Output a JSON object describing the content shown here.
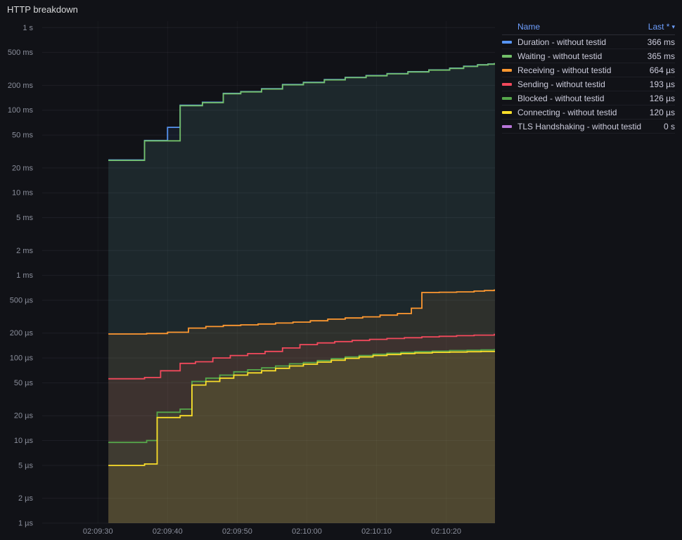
{
  "title": "HTTP breakdown",
  "theme": {
    "background": "#111217",
    "text": "#CCCCDC",
    "axis_text": "#8B8F9C",
    "grid": "rgba(204,204,220,0.07)",
    "grid_vertical": "rgba(204,204,220,0.045)",
    "link": "#6E9FFF"
  },
  "legend": {
    "header": {
      "name": "Name",
      "last": "Last *",
      "sort_icon": "▾"
    },
    "position": "right-top"
  },
  "chart_data": {
    "type": "line",
    "interpolation": "step-after",
    "title": "HTTP breakdown",
    "grid": true,
    "fill_opacity": 0.08,
    "line_width": 1.8,
    "y_axis": {
      "scale": "log10",
      "unit": "µs",
      "min": 1,
      "max": 1200000,
      "ticks": [
        {
          "v": 1000000,
          "label": "1 s"
        },
        {
          "v": 500000,
          "label": "500 ms"
        },
        {
          "v": 200000,
          "label": "200 ms"
        },
        {
          "v": 100000,
          "label": "100 ms"
        },
        {
          "v": 50000,
          "label": "50 ms"
        },
        {
          "v": 20000,
          "label": "20 ms"
        },
        {
          "v": 10000,
          "label": "10 ms"
        },
        {
          "v": 5000,
          "label": "5 ms"
        },
        {
          "v": 2000,
          "label": "2 ms"
        },
        {
          "v": 1000,
          "label": "1 ms"
        },
        {
          "v": 500,
          "label": "500 µs"
        },
        {
          "v": 200,
          "label": "200 µs"
        },
        {
          "v": 100,
          "label": "100 µs"
        },
        {
          "v": 50,
          "label": "50 µs"
        },
        {
          "v": 20,
          "label": "20 µs"
        },
        {
          "v": 10,
          "label": "10 µs"
        },
        {
          "v": 5,
          "label": "5 µs"
        },
        {
          "v": 2,
          "label": "2 µs"
        },
        {
          "v": 1,
          "label": "1 µs"
        }
      ]
    },
    "x_axis": {
      "unit": "seconds after 02:09:00",
      "domain_s": [
        22,
        87
      ],
      "ticks": [
        {
          "t": 30,
          "label": "02:09:30"
        },
        {
          "t": 40,
          "label": "02:09:40"
        },
        {
          "t": 50,
          "label": "02:09:50"
        },
        {
          "t": 60,
          "label": "02:10:00"
        },
        {
          "t": 70,
          "label": "02:10:10"
        },
        {
          "t": 80,
          "label": "02:10:20"
        }
      ]
    },
    "series": [
      {
        "name": "Duration - without testid",
        "color": "#5794F2",
        "last": "366 ms",
        "points": [
          [
            31.5,
            25000
          ],
          [
            36.7,
            43000
          ],
          [
            40,
            62000
          ],
          [
            41.8,
            115000
          ],
          [
            45,
            125000
          ],
          [
            48,
            160000
          ],
          [
            50.5,
            168000
          ],
          [
            53.5,
            182000
          ],
          [
            56.5,
            205000
          ],
          [
            59.5,
            218000
          ],
          [
            62.5,
            235000
          ],
          [
            65.5,
            250000
          ],
          [
            68.5,
            263000
          ],
          [
            71.5,
            278000
          ],
          [
            74.5,
            293000
          ],
          [
            77.5,
            308000
          ],
          [
            80.5,
            323000
          ],
          [
            82.5,
            341000
          ],
          [
            84.5,
            356000
          ],
          [
            86,
            363000
          ],
          [
            86.9,
            366000
          ]
        ]
      },
      {
        "name": "Waiting - without testid",
        "color": "#73BF69",
        "last": "365 ms",
        "points": [
          [
            31.5,
            24700
          ],
          [
            36.7,
            42600
          ],
          [
            41.8,
            113500
          ],
          [
            45,
            123500
          ],
          [
            48,
            158500
          ],
          [
            50.5,
            166500
          ],
          [
            53.5,
            180500
          ],
          [
            56.5,
            203000
          ],
          [
            59.5,
            216000
          ],
          [
            62.5,
            233000
          ],
          [
            65.5,
            248000
          ],
          [
            68.5,
            261000
          ],
          [
            71.5,
            276000
          ],
          [
            74.5,
            291000
          ],
          [
            77.5,
            306000
          ],
          [
            80.5,
            321000
          ],
          [
            82.5,
            339000
          ],
          [
            84.5,
            354000
          ],
          [
            86,
            361000
          ],
          [
            86.9,
            365000
          ]
        ]
      },
      {
        "name": "Receiving - without testid",
        "color": "#FF9830",
        "last": "664 µs",
        "points": [
          [
            31.5,
            195
          ],
          [
            37,
            198
          ],
          [
            40,
            205
          ],
          [
            43,
            230
          ],
          [
            45.5,
            240
          ],
          [
            48,
            248
          ],
          [
            50.5,
            252
          ],
          [
            53,
            258
          ],
          [
            55.5,
            265
          ],
          [
            58,
            272
          ],
          [
            60.5,
            282
          ],
          [
            63,
            295
          ],
          [
            65.5,
            305
          ],
          [
            68,
            315
          ],
          [
            70.5,
            330
          ],
          [
            73,
            345
          ],
          [
            75,
            400
          ],
          [
            76.5,
            620
          ],
          [
            79,
            625
          ],
          [
            81.5,
            632
          ],
          [
            84,
            645
          ],
          [
            85.5,
            655
          ],
          [
            86.9,
            664
          ]
        ]
      },
      {
        "name": "Sending - without testid",
        "color": "#F2495C",
        "last": "193 µs",
        "points": [
          [
            31.5,
            56
          ],
          [
            36.7,
            58
          ],
          [
            39,
            70
          ],
          [
            41.8,
            86
          ],
          [
            44,
            90
          ],
          [
            46.5,
            100
          ],
          [
            49,
            107
          ],
          [
            51.5,
            113
          ],
          [
            54,
            120
          ],
          [
            56.5,
            132
          ],
          [
            59,
            145
          ],
          [
            61.5,
            152
          ],
          [
            64,
            158
          ],
          [
            66.5,
            163
          ],
          [
            69,
            168
          ],
          [
            71.5,
            172
          ],
          [
            74,
            176
          ],
          [
            76.5,
            180
          ],
          [
            79,
            183
          ],
          [
            81.5,
            186
          ],
          [
            84,
            189
          ],
          [
            86.9,
            193
          ]
        ]
      },
      {
        "name": "Blocked - without testid",
        "color": "#56A64B",
        "last": "126 µs",
        "points": [
          [
            31.5,
            9.5
          ],
          [
            37,
            10
          ],
          [
            38.5,
            22
          ],
          [
            41.8,
            24
          ],
          [
            43.5,
            52
          ],
          [
            45.5,
            57
          ],
          [
            47.5,
            62
          ],
          [
            49.5,
            68
          ],
          [
            51.5,
            72
          ],
          [
            53.5,
            76
          ],
          [
            55.5,
            80
          ],
          [
            57.5,
            85
          ],
          [
            59.5,
            88
          ],
          [
            61.5,
            93
          ],
          [
            63.5,
            98
          ],
          [
            65.5,
            103
          ],
          [
            67.5,
            107
          ],
          [
            69.5,
            111
          ],
          [
            71.5,
            114
          ],
          [
            73.5,
            117
          ],
          [
            75.5,
            119
          ],
          [
            78,
            121
          ],
          [
            80.5,
            123
          ],
          [
            83,
            124
          ],
          [
            85,
            125
          ],
          [
            86.9,
            126
          ]
        ]
      },
      {
        "name": "Connecting - without testid",
        "color": "#FADE2A",
        "last": "120 µs",
        "points": [
          [
            31.5,
            5
          ],
          [
            36.7,
            5.2
          ],
          [
            38.5,
            19
          ],
          [
            41.8,
            20
          ],
          [
            43.5,
            47
          ],
          [
            45.5,
            52
          ],
          [
            47.5,
            57
          ],
          [
            49.5,
            62
          ],
          [
            51.5,
            66
          ],
          [
            53.5,
            70
          ],
          [
            55.5,
            75
          ],
          [
            57.5,
            80
          ],
          [
            59.5,
            84
          ],
          [
            61.5,
            89
          ],
          [
            63.5,
            94
          ],
          [
            65.5,
            99
          ],
          [
            67.5,
            103
          ],
          [
            69.5,
            107
          ],
          [
            71.5,
            110
          ],
          [
            73.5,
            113
          ],
          [
            75.5,
            115
          ],
          [
            78,
            117
          ],
          [
            80.5,
            118
          ],
          [
            83,
            119
          ],
          [
            85,
            120
          ],
          [
            86.9,
            120
          ]
        ]
      },
      {
        "name": "TLS Handshaking - without testid",
        "color": "#B877D9",
        "last": "0 s",
        "points": []
      }
    ]
  }
}
